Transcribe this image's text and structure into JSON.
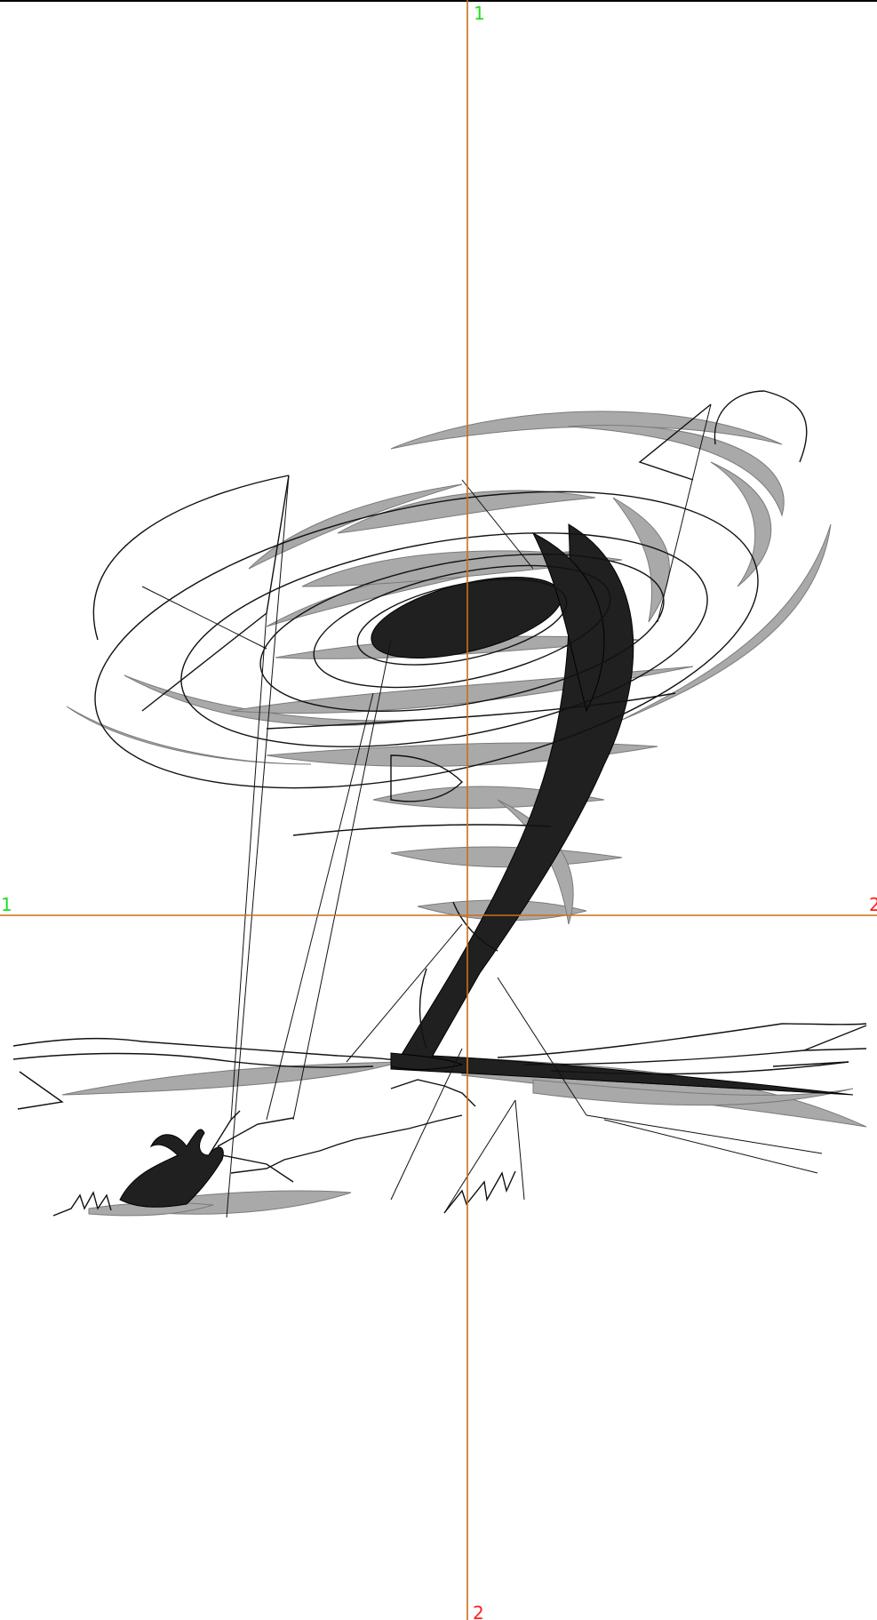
{
  "markers": {
    "vertical_top": "1",
    "vertical_bottom": "2",
    "horizontal_left": "1",
    "horizontal_right": "2"
  },
  "colors": {
    "axis": "#c8701a",
    "marker_start": "#22dd22",
    "marker_end": "#ff2020",
    "stitch_light": "#a9a9a9",
    "stitch_dark": "#1a1a1a",
    "background": "#ffffff"
  },
  "artwork": {
    "icon": "tornado-embroidery-design-icon"
  }
}
